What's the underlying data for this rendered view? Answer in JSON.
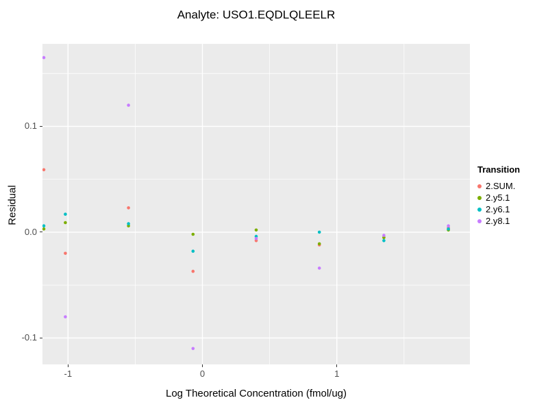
{
  "chart_data": {
    "type": "scatter",
    "title": "Analyte: USO1.EQDLQLEELR",
    "xlabel": "Log Theoretical Concentration (fmol/ug)",
    "ylabel": "Residual",
    "xlim": [
      -1.19,
      1.99
    ],
    "ylim": [
      -0.125,
      0.178
    ],
    "x_ticks": {
      "major": [
        -1,
        0,
        1
      ],
      "minor": [
        -0.5,
        0.5,
        1.5
      ],
      "labels": [
        "-1",
        "0",
        "1"
      ]
    },
    "y_ticks": {
      "major": [
        -0.1,
        0.0,
        0.1
      ],
      "minor": [
        -0.05,
        0.05,
        0.15
      ],
      "labels": [
        "-0.1",
        "0.0",
        "0.1"
      ]
    },
    "x": [
      -1.18,
      -1.02,
      -0.55,
      -0.07,
      0.4,
      0.87,
      1.35,
      1.83
    ],
    "series": [
      {
        "name": "2.SUM.",
        "color": "#F8766D",
        "values": [
          0.059,
          -0.02,
          0.023,
          -0.037,
          -0.008,
          -0.012,
          -0.005,
          0.004
        ]
      },
      {
        "name": "2.y5.1",
        "color": "#7CAE00",
        "values": [
          0.003,
          0.009,
          0.006,
          -0.002,
          0.002,
          -0.011,
          -0.005,
          0.002
        ]
      },
      {
        "name": "2.y6.1",
        "color": "#00BFC4",
        "values": [
          0.006,
          0.017,
          0.008,
          -0.018,
          -0.004,
          0.0,
          -0.008,
          0.003
        ]
      },
      {
        "name": "2.y8.1",
        "color": "#C77CFF",
        "values": [
          0.165,
          -0.08,
          0.12,
          -0.11,
          -0.006,
          -0.034,
          -0.003,
          0.006
        ]
      }
    ],
    "panel_bg": "#EBEBEB",
    "grid_color": "#FFFFFF",
    "legend_position": "right",
    "grid": true
  },
  "legend": {
    "title": "Transition"
  }
}
